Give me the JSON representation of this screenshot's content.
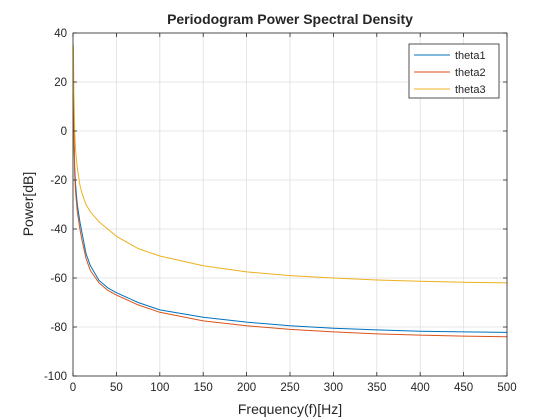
{
  "chart_data": {
    "type": "line",
    "title": "Periodogram Power Spectral Density",
    "xlabel": "Frequency(f)[Hz]",
    "ylabel": "Power[dB]",
    "xlim": [
      0,
      500
    ],
    "ylim": [
      -100,
      40
    ],
    "xticks": [
      0,
      50,
      100,
      150,
      200,
      250,
      300,
      350,
      400,
      450,
      500
    ],
    "yticks": [
      -100,
      -80,
      -60,
      -40,
      -20,
      0,
      20,
      40
    ],
    "grid": true,
    "legend_position": "top-right",
    "series": [
      {
        "name": "theta1",
        "color": "#0072BD",
        "x": [
          0.5,
          1,
          2,
          3,
          5,
          8,
          10,
          15,
          20,
          30,
          40,
          50,
          75,
          100,
          150,
          200,
          250,
          300,
          350,
          400,
          450,
          500
        ],
        "y": [
          15,
          0,
          -15,
          -22,
          -30,
          -37,
          -41,
          -50,
          -55,
          -61,
          -64,
          -66,
          -70,
          -73,
          -76,
          -78,
          -79.5,
          -80.5,
          -81.2,
          -81.7,
          -82,
          -82.2
        ]
      },
      {
        "name": "theta2",
        "color": "#D95319",
        "x": [
          0.5,
          1,
          2,
          3,
          5,
          8,
          10,
          15,
          20,
          30,
          40,
          50,
          75,
          100,
          150,
          200,
          250,
          300,
          350,
          400,
          450,
          500
        ],
        "y": [
          15,
          0,
          -18,
          -25,
          -33,
          -40,
          -44,
          -52,
          -57,
          -62,
          -65,
          -67,
          -71,
          -74,
          -77.5,
          -79.5,
          -81,
          -82,
          -82.8,
          -83.3,
          -83.7,
          -84
        ]
      },
      {
        "name": "theta3",
        "color": "#EDB120",
        "x": [
          0.5,
          1,
          2,
          3,
          5,
          8,
          10,
          15,
          20,
          30,
          40,
          50,
          75,
          100,
          150,
          200,
          250,
          300,
          350,
          400,
          450,
          500
        ],
        "y": [
          35,
          15,
          0,
          -8,
          -15,
          -22,
          -25,
          -30,
          -33,
          -37,
          -40,
          -43,
          -48,
          -51,
          -55,
          -57.5,
          -59,
          -60,
          -60.8,
          -61.3,
          -61.7,
          -62
        ]
      }
    ]
  }
}
